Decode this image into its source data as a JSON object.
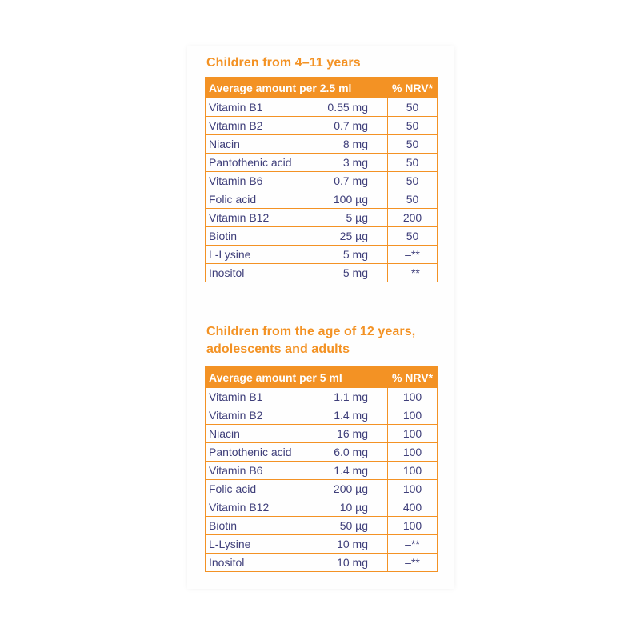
{
  "sections": [
    {
      "title_lines": [
        "Children from 4–11 years"
      ],
      "header": {
        "amount_label": "Average amount per 2.5 ml",
        "nrv_label": "% NRV*"
      },
      "rows": [
        {
          "nutrient": "Vitamin B1",
          "amount": "0.55 mg",
          "nrv": "50"
        },
        {
          "nutrient": "Vitamin B2",
          "amount": "0.7 mg",
          "nrv": "50"
        },
        {
          "nutrient": "Niacin",
          "amount": "8 mg",
          "nrv": "50"
        },
        {
          "nutrient": "Pantothenic acid",
          "amount": "3 mg",
          "nrv": "50"
        },
        {
          "nutrient": "Vitamin B6",
          "amount": "0.7 mg",
          "nrv": "50"
        },
        {
          "nutrient": "Folic acid",
          "amount": "100 µg",
          "nrv": "50"
        },
        {
          "nutrient": "Vitamin B12",
          "amount": "5 µg",
          "nrv": "200"
        },
        {
          "nutrient": "Biotin",
          "amount": "25 µg",
          "nrv": "50"
        },
        {
          "nutrient": "L-Lysine",
          "amount": "5 mg",
          "nrv": "–**"
        },
        {
          "nutrient": "Inositol",
          "amount": "5 mg",
          "nrv": "–**"
        }
      ]
    },
    {
      "title_lines": [
        "Children from the age of 12 years,",
        "adolescents and adults"
      ],
      "header": {
        "amount_label": "Average amount per 5 ml",
        "nrv_label": "% NRV*"
      },
      "rows": [
        {
          "nutrient": "Vitamin B1",
          "amount": "1.1 mg",
          "nrv": "100"
        },
        {
          "nutrient": "Vitamin B2",
          "amount": "1.4 mg",
          "nrv": "100"
        },
        {
          "nutrient": "Niacin",
          "amount": "16 mg",
          "nrv": "100"
        },
        {
          "nutrient": "Pantothenic acid",
          "amount": "6.0 mg",
          "nrv": "100"
        },
        {
          "nutrient": "Vitamin B6",
          "amount": "1.4 mg",
          "nrv": "100"
        },
        {
          "nutrient": "Folic acid",
          "amount": "200 µg",
          "nrv": "100"
        },
        {
          "nutrient": "Vitamin B12",
          "amount": "10 µg",
          "nrv": "400"
        },
        {
          "nutrient": "Biotin",
          "amount": "50 µg",
          "nrv": "100"
        },
        {
          "nutrient": "L-Lysine",
          "amount": "10 mg",
          "nrv": "–**"
        },
        {
          "nutrient": "Inositol",
          "amount": "10 mg",
          "nrv": "–**"
        }
      ]
    }
  ],
  "colors": {
    "accent": "#f39224",
    "text": "#3f3f7a",
    "card": "#fefefe"
  }
}
